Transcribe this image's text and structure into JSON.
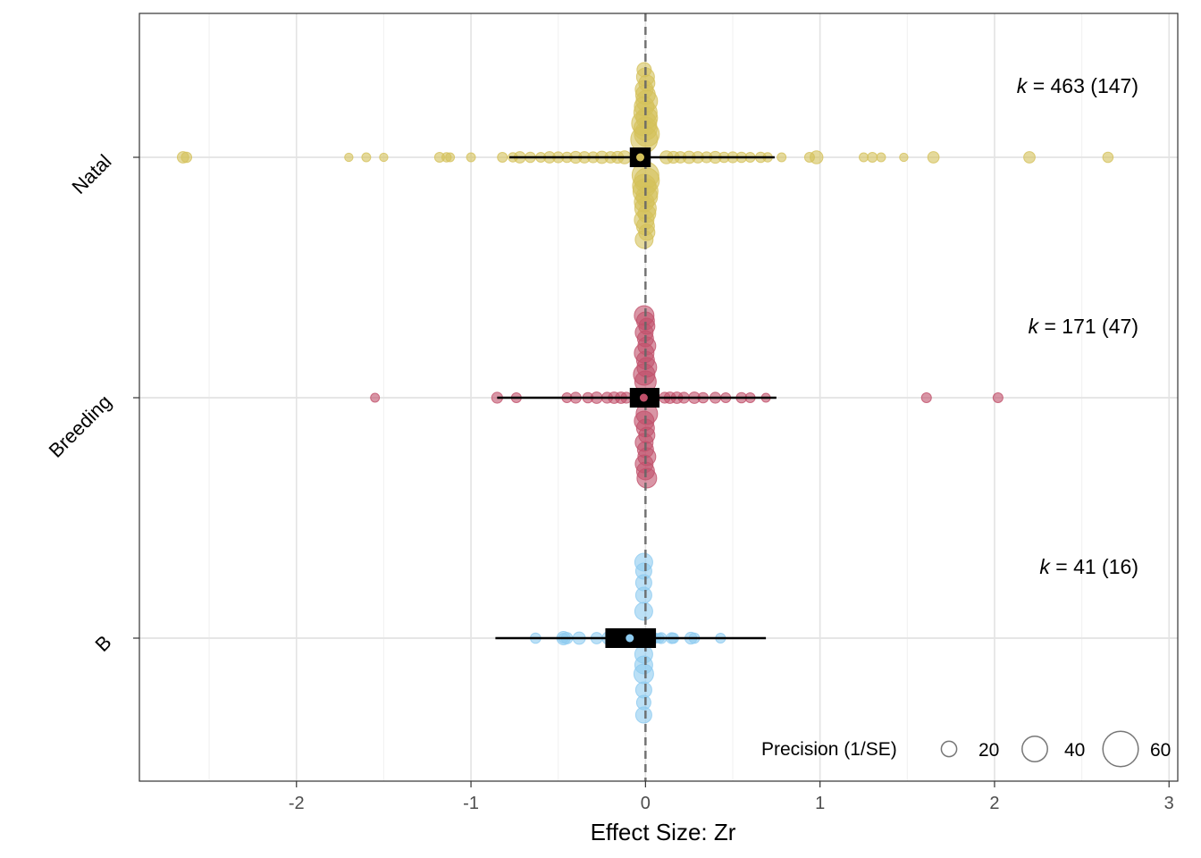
{
  "chart_data": {
    "type": "scatter",
    "subtype": "orchard plot",
    "xlabel": "Effect Size: Zr",
    "x_ticks": [
      "-2",
      "-1",
      "0",
      "1",
      "2",
      "3"
    ],
    "xlim": [
      -2.9,
      3.05
    ],
    "grid": true,
    "reference_line": 0,
    "categories": [
      "Natal",
      "Breeding",
      "B"
    ],
    "groups": [
      {
        "name": "Natal",
        "color": "#D4C15A",
        "k_label": "k",
        "k_eq": "=",
        "k_value": "463",
        "k_studies": "147",
        "estimate": -0.03,
        "ci": [
          -0.09,
          0.03
        ],
        "pi": [
          -0.78,
          0.74
        ],
        "points": [
          [
            -2.65,
            12
          ],
          [
            -2.63,
            10
          ],
          [
            -1.7,
            6
          ],
          [
            -1.6,
            7
          ],
          [
            -1.5,
            6
          ],
          [
            -1.18,
            9
          ],
          [
            -1.14,
            8
          ],
          [
            -1.12,
            7
          ],
          [
            -1.0,
            7
          ],
          [
            -0.82,
            9
          ],
          [
            -0.76,
            8
          ],
          [
            -0.72,
            12
          ],
          [
            -0.66,
            10
          ],
          [
            -0.6,
            9
          ],
          [
            -0.55,
            12
          ],
          [
            -0.5,
            11
          ],
          [
            -0.45,
            10
          ],
          [
            -0.4,
            13
          ],
          [
            -0.35,
            12
          ],
          [
            -0.3,
            11
          ],
          [
            -0.25,
            14
          ],
          [
            -0.2,
            12
          ],
          [
            -0.16,
            13
          ],
          [
            -0.12,
            15
          ],
          [
            0.12,
            15
          ],
          [
            0.16,
            13
          ],
          [
            0.2,
            12
          ],
          [
            0.25,
            14
          ],
          [
            0.3,
            12
          ],
          [
            0.35,
            11
          ],
          [
            0.4,
            13
          ],
          [
            0.45,
            10
          ],
          [
            0.5,
            11
          ],
          [
            0.55,
            10
          ],
          [
            0.6,
            9
          ],
          [
            0.66,
            10
          ],
          [
            0.7,
            8
          ],
          [
            0.78,
            7
          ],
          [
            0.98,
            15
          ],
          [
            0.94,
            9
          ],
          [
            1.25,
            7
          ],
          [
            1.3,
            9
          ],
          [
            1.35,
            7
          ],
          [
            1.48,
            6
          ],
          [
            1.65,
            12
          ],
          [
            2.2,
            12
          ],
          [
            2.65,
            10
          ]
        ]
      },
      {
        "name": "Breeding",
        "color": "#C0506A",
        "k_label": "k",
        "k_eq": "=",
        "k_value": "171",
        "k_studies": "47",
        "estimate": -0.01,
        "ci": [
          -0.09,
          0.08
        ],
        "pi": [
          -0.85,
          0.75
        ],
        "points": [
          [
            -1.55,
            7
          ],
          [
            -0.85,
            11
          ],
          [
            -0.74,
            9
          ],
          [
            -0.45,
            9
          ],
          [
            -0.4,
            11
          ],
          [
            -0.33,
            10
          ],
          [
            -0.28,
            12
          ],
          [
            -0.22,
            11
          ],
          [
            -0.18,
            12
          ],
          [
            -0.14,
            12
          ],
          [
            -0.11,
            11
          ],
          [
            0.11,
            11
          ],
          [
            0.14,
            12
          ],
          [
            0.18,
            12
          ],
          [
            0.22,
            11
          ],
          [
            0.28,
            12
          ],
          [
            0.33,
            10
          ],
          [
            0.4,
            11
          ],
          [
            0.46,
            9
          ],
          [
            0.55,
            10
          ],
          [
            0.6,
            9
          ],
          [
            0.69,
            7
          ],
          [
            1.61,
            9
          ],
          [
            2.02,
            9
          ]
        ]
      },
      {
        "name": "B",
        "color": "#8DCBF0",
        "k_label": "k",
        "k_eq": "=",
        "k_value": "41",
        "k_studies": "16",
        "estimate": -0.09,
        "ci": [
          -0.23,
          0.06
        ],
        "pi": [
          -0.86,
          0.69
        ],
        "points": [
          [
            -0.63,
            10
          ],
          [
            -0.47,
            9
          ],
          [
            -0.45,
            12
          ],
          [
            -0.47,
            16
          ],
          [
            -0.38,
            14
          ],
          [
            -0.28,
            12
          ],
          [
            -0.21,
            16
          ],
          [
            -0.18,
            12
          ],
          [
            -0.15,
            14
          ],
          [
            -0.15,
            18
          ],
          [
            -0.1,
            13
          ],
          [
            -0.08,
            9
          ],
          [
            -0.12,
            10
          ],
          [
            -0.19,
            9
          ],
          [
            -0.13,
            9
          ],
          [
            -0.06,
            14
          ],
          [
            -0.05,
            11
          ],
          [
            -0.03,
            11
          ],
          [
            -0.01,
            11
          ],
          [
            0.0,
            12
          ],
          [
            0.02,
            10
          ],
          [
            0.01,
            9
          ],
          [
            -0.02,
            14
          ],
          [
            0.04,
            12
          ],
          [
            0.06,
            9
          ],
          [
            0.09,
            11
          ],
          [
            0.08,
            8
          ],
          [
            0.15,
            11
          ],
          [
            0.16,
            10
          ],
          [
            0.26,
            13
          ],
          [
            0.28,
            10
          ],
          [
            0.43,
            9
          ]
        ]
      }
    ],
    "legend": {
      "title": "Precision (1/SE)",
      "position": "bottom-right",
      "entries": [
        {
          "label": "20",
          "precision": 20
        },
        {
          "label": "40",
          "precision": 40
        },
        {
          "label": "60",
          "precision": 60
        }
      ]
    }
  }
}
